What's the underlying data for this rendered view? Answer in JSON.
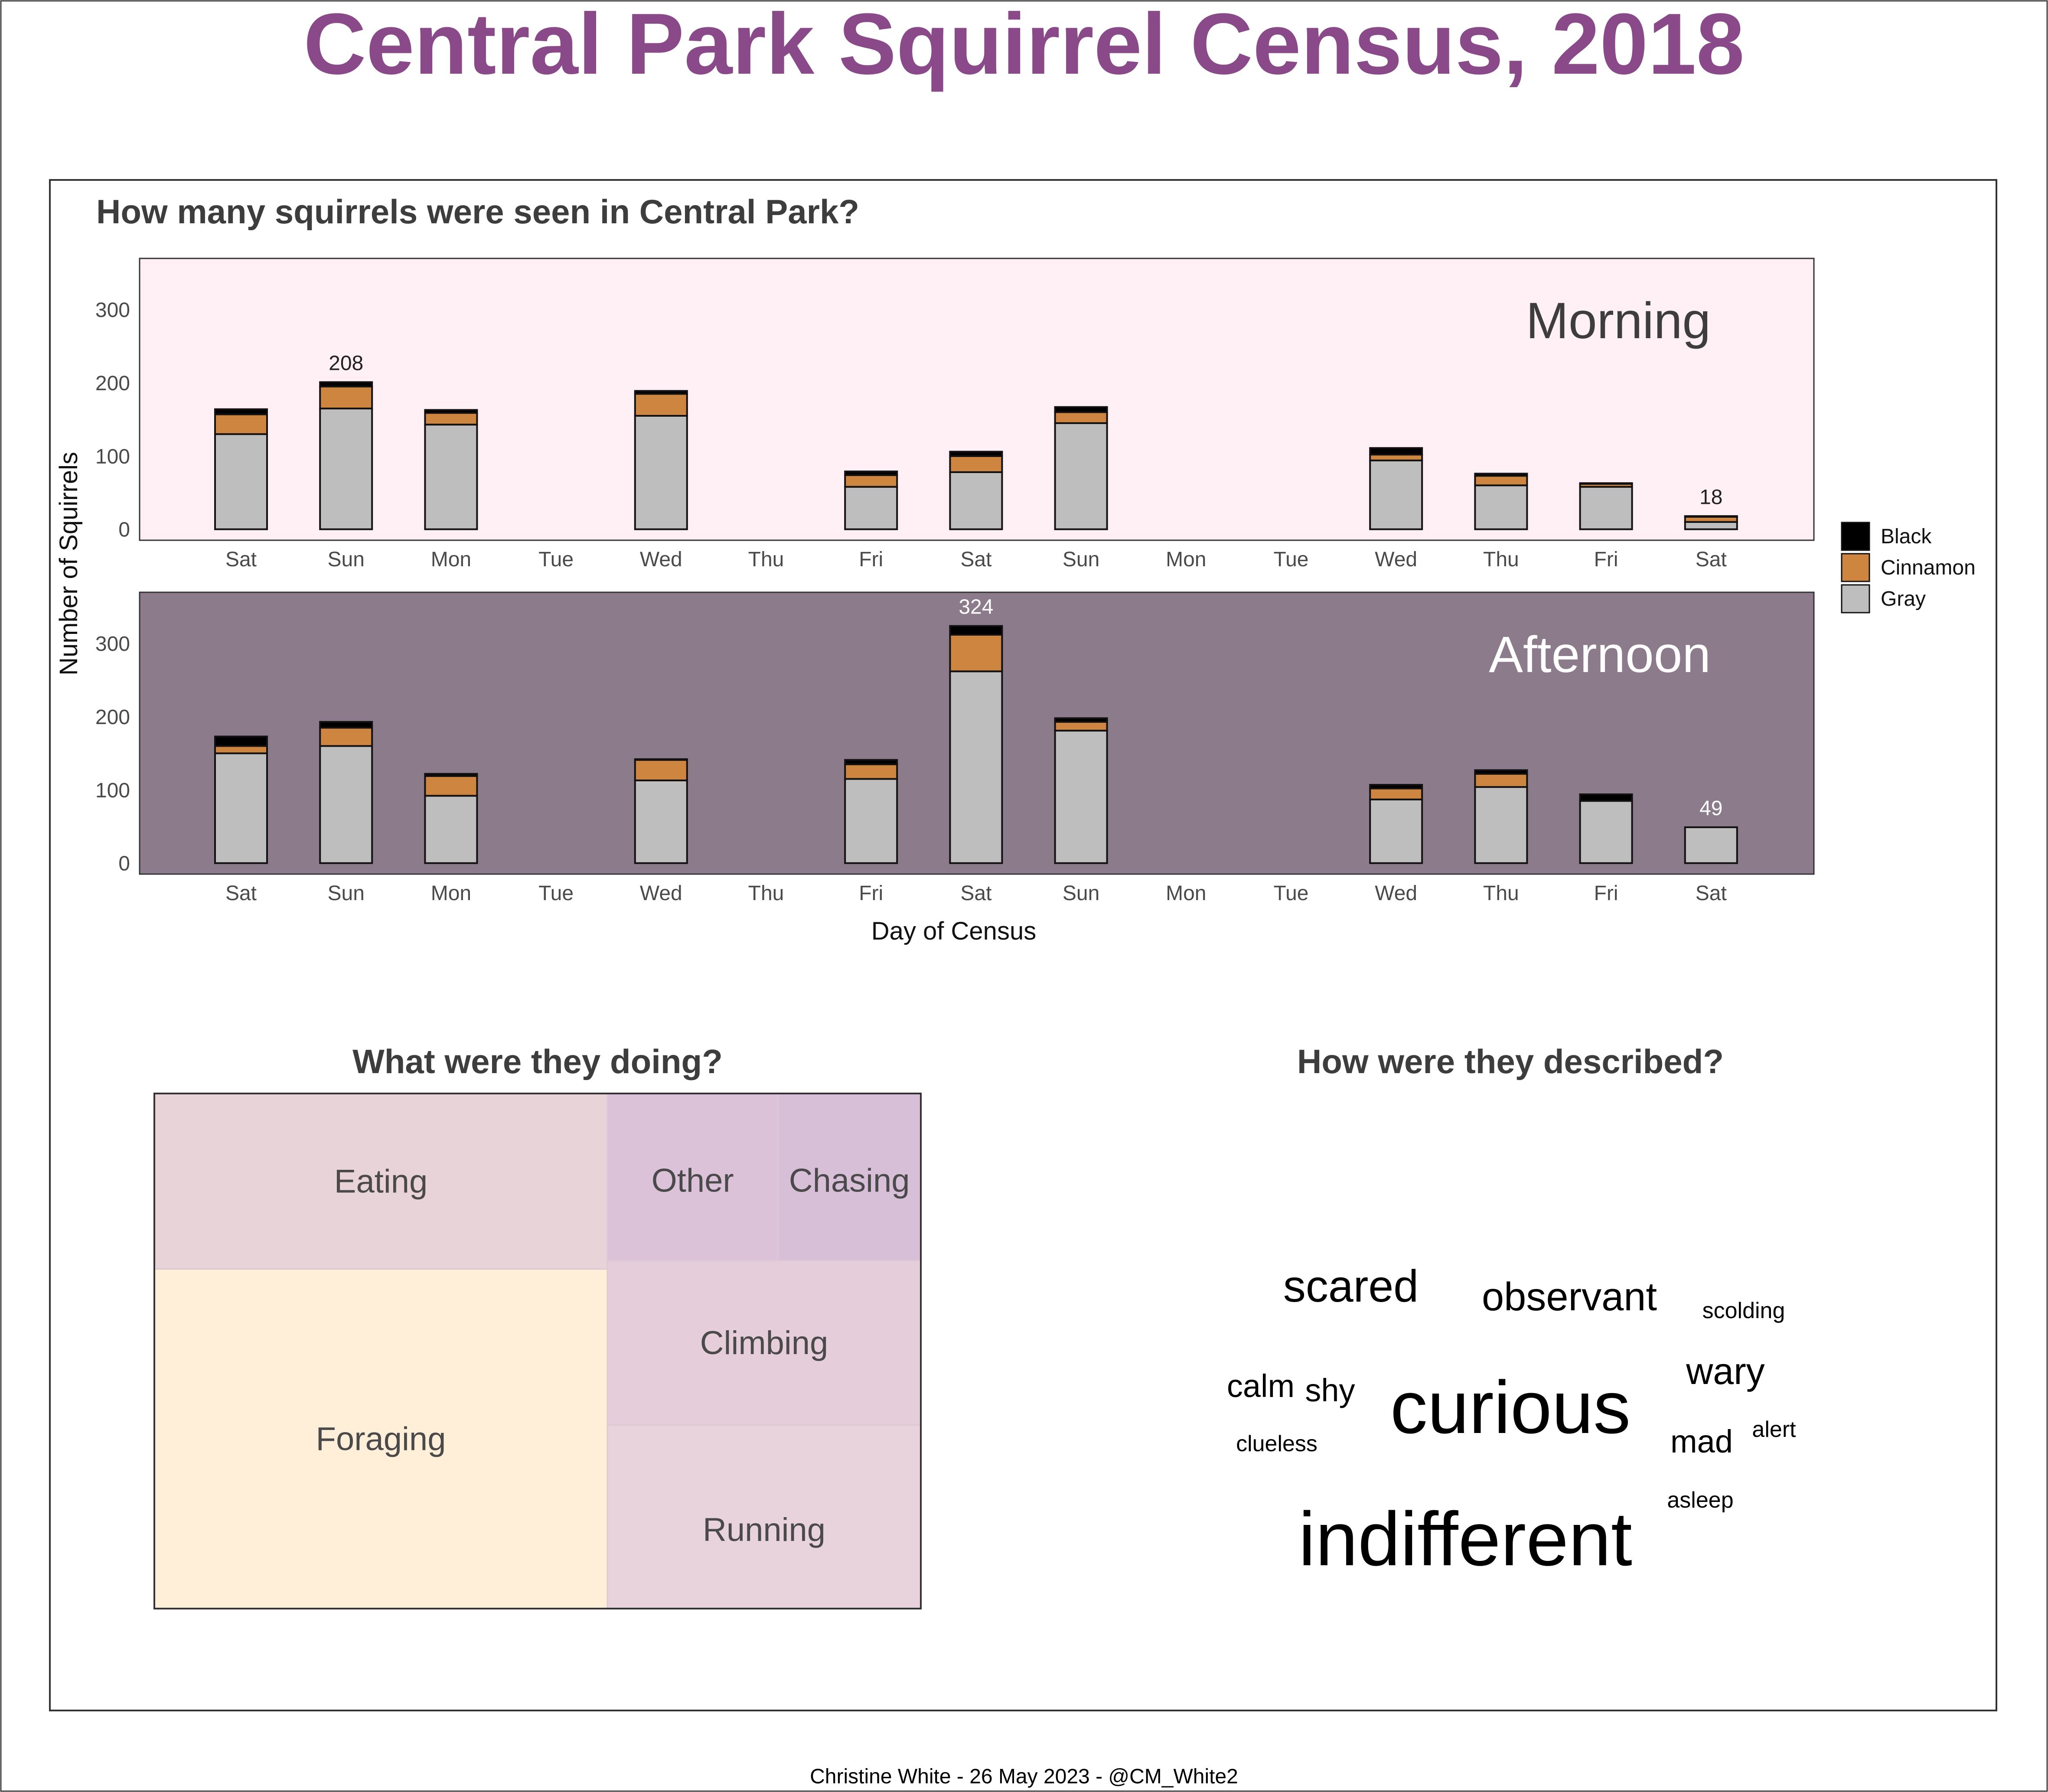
{
  "title": "Central Park Squirrel Census, 2018",
  "caption": "Christine White - 26 May 2023 - @CM_White2",
  "colors": {
    "title": "#8a4a8a",
    "morning_bg": "#fff0f5",
    "afternoon_bg": "#8b7b8b",
    "black": "#000000",
    "cinnamon": "#cd853f",
    "gray": "#bebebe"
  },
  "chart_data": [
    {
      "type": "bar",
      "stacked": true,
      "title": "How many squirrels were seen in Central Park?",
      "xlabel": "Day of Census",
      "ylabel": "Number of Squirrels",
      "ylim": [
        -15,
        370
      ],
      "yticks": [
        0,
        100,
        200,
        300
      ],
      "categories": [
        "Sat",
        "Sun",
        "Mon",
        "Tue",
        "Wed",
        "Thu",
        "Fri",
        "Sat",
        "Sun",
        "Mon",
        "Tue",
        "Wed",
        "Thu",
        "Fri",
        "Sat"
      ],
      "legend": {
        "position": "right",
        "entries": [
          {
            "name": "Black",
            "color": "#000000"
          },
          {
            "name": "Cinnamon",
            "color": "#cd853f"
          },
          {
            "name": "Gray",
            "color": "#bebebe"
          }
        ]
      },
      "facets": [
        {
          "name": "Morning",
          "series": [
            {
              "name": "Gray",
              "values": [
                130,
                165,
                143,
                0,
                155,
                0,
                58,
                78,
                145,
                0,
                0,
                94,
                60,
                58,
                10
              ]
            },
            {
              "name": "Cinnamon",
              "values": [
                27,
                30,
                16,
                0,
                30,
                0,
                16,
                22,
                15,
                0,
                0,
                8,
                13,
                4,
                7
              ]
            },
            {
              "name": "Black",
              "values": [
                7,
                6,
                4,
                0,
                4,
                0,
                5,
                6,
                7,
                0,
                0,
                9,
                3,
                1,
                1
              ]
            }
          ],
          "data_labels": [
            {
              "index": 1,
              "text": "208"
            },
            {
              "index": 14,
              "text": "18"
            }
          ]
        },
        {
          "name": "Afternoon",
          "series": [
            {
              "name": "Gray",
              "values": [
                150,
                160,
                92,
                0,
                113,
                0,
                115,
                262,
                181,
                0,
                0,
                87,
                104,
                85,
                49
              ]
            },
            {
              "name": "Cinnamon",
              "values": [
                10,
                25,
                27,
                0,
                28,
                0,
                20,
                50,
                12,
                0,
                0,
                15,
                18,
                0,
                0
              ]
            },
            {
              "name": "Black",
              "values": [
                13,
                8,
                3,
                0,
                1,
                0,
                6,
                12,
                5,
                0,
                0,
                5,
                5,
                9,
                0
              ]
            }
          ],
          "data_labels": [
            {
              "index": 7,
              "text": "324"
            },
            {
              "index": 14,
              "text": "49"
            }
          ]
        }
      ]
    },
    {
      "type": "treemap",
      "title": "What were they doing?",
      "items": [
        {
          "name": "Foraging",
          "value": 56.7,
          "color": "#ffefd9"
        },
        {
          "name": "Eating",
          "value": 29.3,
          "color": "#e8d3d9"
        },
        {
          "name": "Running",
          "value": 21.2,
          "color": "#e8d3dc"
        },
        {
          "name": "Climbing",
          "value": 19.0,
          "color": "#e5cdda"
        },
        {
          "name": "Other",
          "value": 10.5,
          "color": "#dcc2d8"
        },
        {
          "name": "Chasing",
          "value": 8.8,
          "color": "#d8bfd8"
        }
      ]
    },
    {
      "type": "wordcloud",
      "title": "How were they described?",
      "words": [
        {
          "text": "indifferent",
          "weight": 100
        },
        {
          "text": "curious",
          "weight": 98
        },
        {
          "text": "scared",
          "weight": 60
        },
        {
          "text": "observant",
          "weight": 54
        },
        {
          "text": "wary",
          "weight": 50
        },
        {
          "text": "calm",
          "weight": 45
        },
        {
          "text": "shy",
          "weight": 43
        },
        {
          "text": "mad",
          "weight": 43
        },
        {
          "text": "scolding",
          "weight": 33
        },
        {
          "text": "clueless",
          "weight": 32
        },
        {
          "text": "alert",
          "weight": 32
        },
        {
          "text": "asleep",
          "weight": 32
        }
      ]
    }
  ]
}
